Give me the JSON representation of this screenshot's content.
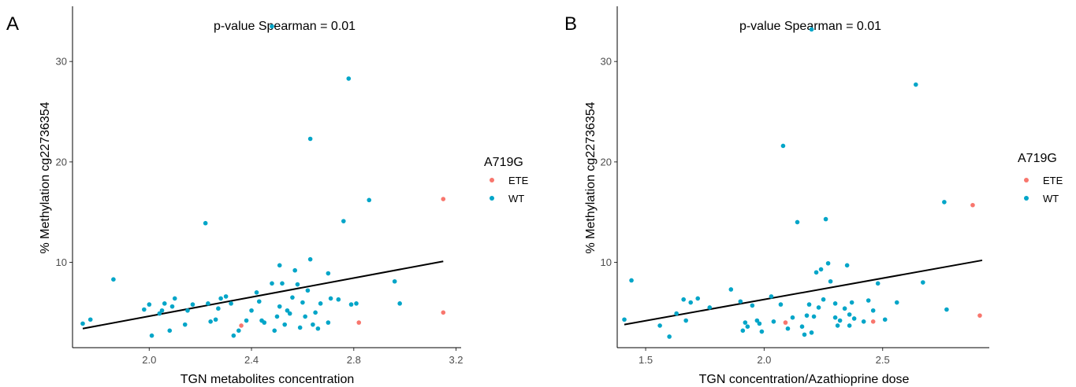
{
  "colors": {
    "ETE": "#F8766D",
    "WT": "#00A5C8",
    "fit": "#000000"
  },
  "chart_data": [
    {
      "type": "scatter",
      "panel_label": "A",
      "annotation": "p-value Spearman = 0.01",
      "xlabel": "TGN metabolites concentration",
      "ylabel": "% Methylation cg22736354",
      "xlim": [
        1.7,
        3.22
      ],
      "ylim": [
        1.5,
        35.5
      ],
      "x_ticks": [
        2.0,
        2.4,
        2.8,
        3.2
      ],
      "x_tick_labels": [
        "2.0",
        "2.4",
        "2.8",
        "3.2"
      ],
      "y_ticks": [
        10,
        20,
        30
      ],
      "y_tick_labels": [
        "10",
        "20",
        "30"
      ],
      "legend": {
        "title": "A719G",
        "entries": [
          "ETE",
          "WT"
        ],
        "position": "right"
      },
      "fit_line": {
        "x": [
          1.74,
          3.15
        ],
        "y": [
          3.4,
          10.1
        ]
      },
      "series": [
        {
          "name": "ETE",
          "points": [
            [
              2.36,
              3.7
            ],
            [
              2.82,
              4.0
            ],
            [
              3.15,
              16.3
            ],
            [
              3.15,
              5.0
            ]
          ]
        },
        {
          "name": "WT",
          "points": [
            [
              1.74,
              3.9
            ],
            [
              1.77,
              4.3
            ],
            [
              1.86,
              8.3
            ],
            [
              1.98,
              5.3
            ],
            [
              2.0,
              5.8
            ],
            [
              2.01,
              2.7
            ],
            [
              2.04,
              4.9
            ],
            [
              2.05,
              5.2
            ],
            [
              2.06,
              5.9
            ],
            [
              2.08,
              3.2
            ],
            [
              2.09,
              5.6
            ],
            [
              2.1,
              6.4
            ],
            [
              2.14,
              3.8
            ],
            [
              2.15,
              5.2
            ],
            [
              2.17,
              5.8
            ],
            [
              2.22,
              13.9
            ],
            [
              2.23,
              5.9
            ],
            [
              2.24,
              4.1
            ],
            [
              2.26,
              4.3
            ],
            [
              2.27,
              5.4
            ],
            [
              2.28,
              6.4
            ],
            [
              2.3,
              6.6
            ],
            [
              2.32,
              5.9
            ],
            [
              2.33,
              2.7
            ],
            [
              2.35,
              3.2
            ],
            [
              2.38,
              4.2
            ],
            [
              2.4,
              5.2
            ],
            [
              2.42,
              7.0
            ],
            [
              2.43,
              6.1
            ],
            [
              2.44,
              4.2
            ],
            [
              2.45,
              4.0
            ],
            [
              2.48,
              33.5
            ],
            [
              2.48,
              7.9
            ],
            [
              2.49,
              3.2
            ],
            [
              2.5,
              4.6
            ],
            [
              2.51,
              5.6
            ],
            [
              2.51,
              9.7
            ],
            [
              2.52,
              7.9
            ],
            [
              2.53,
              3.8
            ],
            [
              2.54,
              5.2
            ],
            [
              2.55,
              4.9
            ],
            [
              2.56,
              6.5
            ],
            [
              2.57,
              9.2
            ],
            [
              2.58,
              7.8
            ],
            [
              2.59,
              3.5
            ],
            [
              2.6,
              6.0
            ],
            [
              2.61,
              4.6
            ],
            [
              2.62,
              7.2
            ],
            [
              2.63,
              10.3
            ],
            [
              2.63,
              22.3
            ],
            [
              2.64,
              3.8
            ],
            [
              2.65,
              5.0
            ],
            [
              2.66,
              3.4
            ],
            [
              2.67,
              5.9
            ],
            [
              2.7,
              8.9
            ],
            [
              2.7,
              4.0
            ],
            [
              2.71,
              6.4
            ],
            [
              2.74,
              6.3
            ],
            [
              2.76,
              14.1
            ],
            [
              2.78,
              28.3
            ],
            [
              2.79,
              5.8
            ],
            [
              2.81,
              5.9
            ],
            [
              2.86,
              16.2
            ],
            [
              2.96,
              8.1
            ],
            [
              2.98,
              5.9
            ]
          ]
        }
      ]
    },
    {
      "type": "scatter",
      "panel_label": "B",
      "annotation": "p-value Spearman = 0.01",
      "xlabel": "TGN concentration/Azathioprine dose",
      "ylabel": "% Methylation cg22736354",
      "xlim": [
        1.38,
        2.95
      ],
      "ylim": [
        1.5,
        35.5
      ],
      "x_ticks": [
        1.5,
        2.0,
        2.5
      ],
      "x_tick_labels": [
        "1.5",
        "2.0",
        "2.5"
      ],
      "y_ticks": [
        10,
        20,
        30
      ],
      "y_tick_labels": [
        "10",
        "20",
        "30"
      ],
      "legend": {
        "title": "A719G",
        "entries": [
          "ETE",
          "WT"
        ],
        "position": "right"
      },
      "fit_line": {
        "x": [
          1.41,
          2.92
        ],
        "y": [
          3.8,
          10.2
        ]
      },
      "series": [
        {
          "name": "ETE",
          "points": [
            [
              2.09,
              4.0
            ],
            [
              2.46,
              4.1
            ],
            [
              2.88,
              15.7
            ],
            [
              2.91,
              4.7
            ]
          ]
        },
        {
          "name": "WT",
          "points": [
            [
              1.41,
              4.3
            ],
            [
              1.44,
              8.2
            ],
            [
              1.56,
              3.7
            ],
            [
              1.6,
              2.6
            ],
            [
              1.63,
              4.9
            ],
            [
              1.66,
              6.3
            ],
            [
              1.67,
              4.2
            ],
            [
              1.69,
              6.0
            ],
            [
              1.72,
              6.4
            ],
            [
              1.77,
              5.5
            ],
            [
              1.86,
              7.3
            ],
            [
              1.9,
              6.1
            ],
            [
              1.91,
              3.2
            ],
            [
              1.92,
              4.0
            ],
            [
              1.93,
              3.6
            ],
            [
              1.95,
              5.7
            ],
            [
              1.97,
              4.2
            ],
            [
              1.98,
              3.9
            ],
            [
              1.99,
              3.1
            ],
            [
              2.03,
              6.6
            ],
            [
              2.04,
              4.1
            ],
            [
              2.07,
              5.8
            ],
            [
              2.08,
              21.6
            ],
            [
              2.1,
              3.4
            ],
            [
              2.12,
              4.5
            ],
            [
              2.14,
              14.0
            ],
            [
              2.16,
              3.6
            ],
            [
              2.17,
              2.8
            ],
            [
              2.18,
              4.7
            ],
            [
              2.19,
              5.8
            ],
            [
              2.2,
              33.2
            ],
            [
              2.2,
              3.0
            ],
            [
              2.21,
              4.6
            ],
            [
              2.22,
              9.0
            ],
            [
              2.23,
              5.5
            ],
            [
              2.24,
              9.3
            ],
            [
              2.25,
              6.3
            ],
            [
              2.26,
              14.3
            ],
            [
              2.27,
              9.9
            ],
            [
              2.28,
              8.1
            ],
            [
              2.3,
              5.9
            ],
            [
              2.3,
              4.5
            ],
            [
              2.31,
              3.7
            ],
            [
              2.32,
              4.2
            ],
            [
              2.34,
              5.4
            ],
            [
              2.35,
              9.7
            ],
            [
              2.36,
              4.8
            ],
            [
              2.36,
              3.7
            ],
            [
              2.37,
              6.0
            ],
            [
              2.38,
              4.4
            ],
            [
              2.42,
              4.1
            ],
            [
              2.44,
              6.2
            ],
            [
              2.46,
              5.2
            ],
            [
              2.48,
              7.9
            ],
            [
              2.51,
              4.3
            ],
            [
              2.56,
              6.0
            ],
            [
              2.64,
              27.7
            ],
            [
              2.67,
              8.0
            ],
            [
              2.76,
              16.0
            ],
            [
              2.77,
              5.3
            ]
          ]
        }
      ]
    }
  ]
}
